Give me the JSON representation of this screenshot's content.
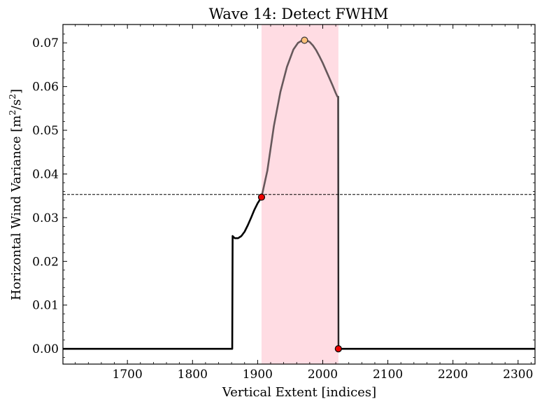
{
  "chart_data": {
    "type": "line",
    "title": "Wave 14: Detect FWHM",
    "xlabel": "Vertical Extent [indices]",
    "ylabel_main": "Horizontal Wind Variance [m",
    "ylabel_sup1": "2",
    "ylabel_mid": "/s",
    "ylabel_sup2": "2",
    "ylabel_end": "]",
    "xlim": [
      1601,
      2326
    ],
    "ylim": [
      -0.0035,
      0.0742
    ],
    "xticks": [
      1700,
      1800,
      1900,
      2000,
      2100,
      2200,
      2300
    ],
    "xtick_labels": [
      "1700",
      "1800",
      "1900",
      "2000",
      "2100",
      "2200",
      "2300"
    ],
    "yticks": [
      0.0,
      0.01,
      0.02,
      0.03,
      0.04,
      0.05,
      0.06,
      0.07
    ],
    "ytick_labels": [
      "0.00",
      "0.01",
      "0.02",
      "0.03",
      "0.04",
      "0.05",
      "0.06",
      "0.07"
    ],
    "half_max": 0.0353,
    "fwhm_span": [
      1906,
      2024
    ],
    "peak": {
      "x": 1972,
      "y": 0.0706
    },
    "fwhm_points": [
      {
        "x": 1906,
        "y": 0.0347
      },
      {
        "x": 2024,
        "y": 0.0
      }
    ],
    "series": [
      {
        "x": [
          1601,
          1861,
          1861.6,
          1862,
          1865,
          1870,
          1875,
          1880,
          1885,
          1890,
          1895,
          1900,
          1906,
          1915,
          1925,
          1935,
          1945,
          1955,
          1962,
          1970,
          1975,
          1980,
          1985,
          1990,
          1995,
          2000,
          2005,
          2010,
          2015,
          2020,
          2022.5,
          2023.5,
          2024,
          2326
        ],
        "y": [
          0.0,
          0.0,
          0.0258,
          0.0257,
          0.0253,
          0.0253,
          0.0258,
          0.0268,
          0.0283,
          0.03,
          0.0318,
          0.0333,
          0.0347,
          0.0408,
          0.051,
          0.0588,
          0.0645,
          0.0685,
          0.07,
          0.0707,
          0.0706,
          0.0702,
          0.0694,
          0.0683,
          0.0669,
          0.0654,
          0.0637,
          0.062,
          0.0603,
          0.0585,
          0.0577,
          0.0577,
          0.0,
          0.0
        ]
      }
    ],
    "colors": {
      "line": "#000000",
      "fwhm_span": "#ffdde3",
      "peak_marker": "#ffc07a",
      "fwhm_marker": "#ee0000",
      "half_max_line": "#000000"
    }
  }
}
